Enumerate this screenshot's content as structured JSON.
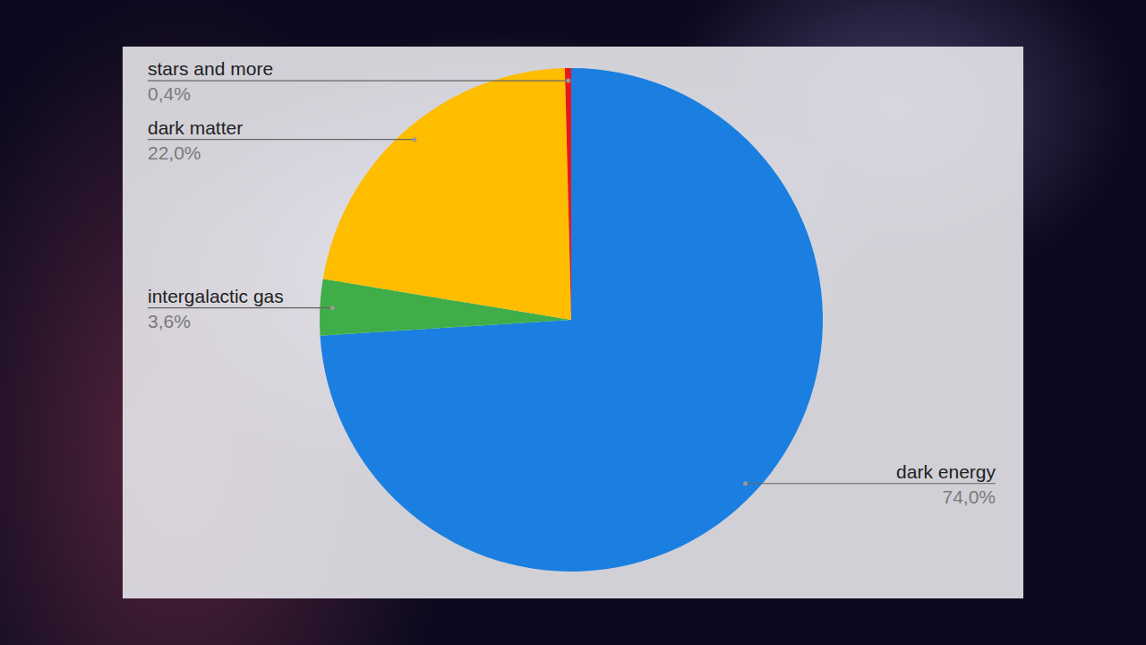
{
  "chart_data": {
    "type": "pie",
    "categories": [
      "dark energy",
      "intergalactic gas",
      "dark matter",
      "stars and more"
    ],
    "values": [
      74.0,
      3.6,
      22.0,
      0.4
    ],
    "value_labels": [
      "74,0%",
      "3,6%",
      "22,0%",
      "0,4%"
    ],
    "colors": [
      "#1a7fe0",
      "#3fae49",
      "#ffbd00",
      "#e8161b"
    ],
    "data_labels": true
  }
}
